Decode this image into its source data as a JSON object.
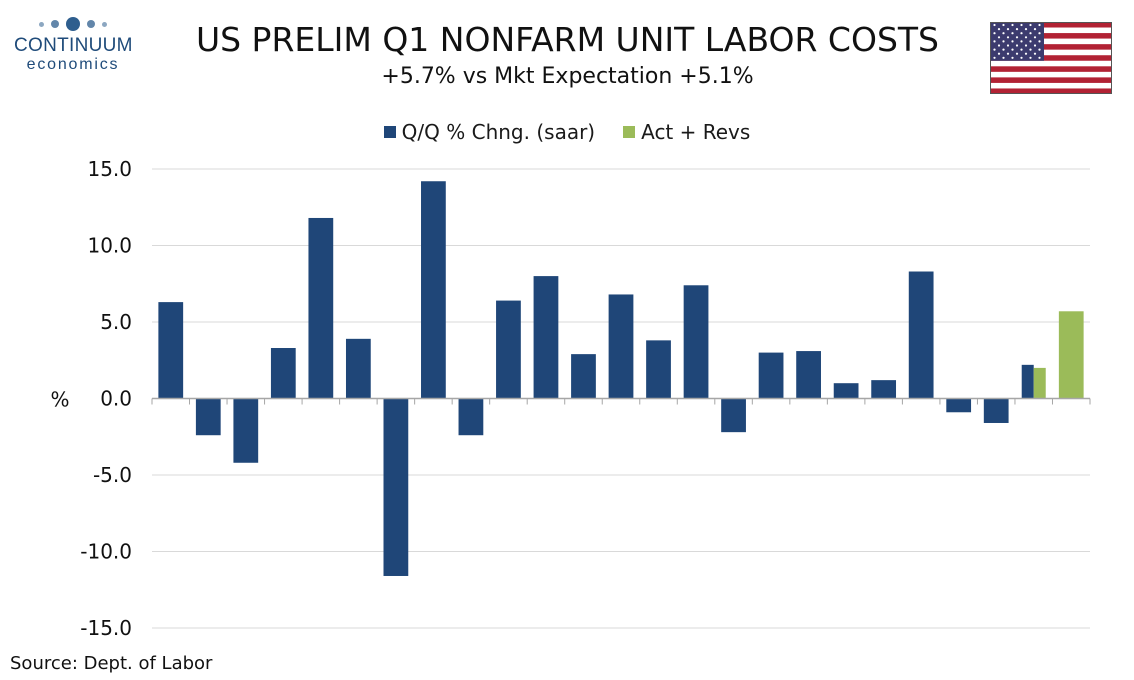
{
  "logo": {
    "line1": "CONTINUUM",
    "line2": "economics"
  },
  "header": {
    "title": "US PRELIM Q1 NONFARM UNIT LABOR COSTS",
    "subtitle": "+5.7% vs Mkt Expectation +5.1%"
  },
  "flag": {
    "icon": "us-flag-icon",
    "red": "#b22234",
    "blue": "#3c3b6e"
  },
  "source": "Source: Dept. of Labor",
  "colors": {
    "series1": "#1f4678",
    "series2": "#9bbb59",
    "grid": "#d9d9d9",
    "axis": "#a6a6a6"
  },
  "chart_data": {
    "type": "bar",
    "title": "US PRELIM Q1 NONFARM UNIT LABOR COSTS",
    "subtitle": "+5.7% vs Mkt Expectation +5.1%",
    "ylabel": "%",
    "ylim": [
      -15,
      15
    ],
    "yticks": [
      15,
      10,
      5,
      0,
      -5,
      -10,
      -15
    ],
    "ytick_labels": [
      "15.0",
      "10.0",
      "5.0",
      "0.0",
      "-5.0",
      "-10.0",
      "-15.0"
    ],
    "grid": true,
    "legend_position": "top",
    "series": [
      {
        "name": "Q/Q % Chng. (saar)",
        "color": "#1f4678",
        "values": [
          6.3,
          -2.4,
          -4.2,
          3.3,
          11.8,
          3.9,
          -11.6,
          14.2,
          -2.4,
          6.4,
          8.0,
          2.9,
          6.8,
          3.8,
          7.4,
          -2.2,
          3.0,
          3.1,
          1.0,
          1.2,
          8.3,
          -0.9,
          -1.6,
          2.2,
          null
        ]
      },
      {
        "name": "Act + Revs",
        "color": "#9bbb59",
        "values": [
          null,
          null,
          null,
          null,
          null,
          null,
          null,
          null,
          null,
          null,
          null,
          null,
          null,
          null,
          null,
          null,
          null,
          null,
          null,
          null,
          null,
          null,
          null,
          2.0,
          5.7
        ]
      }
    ]
  }
}
